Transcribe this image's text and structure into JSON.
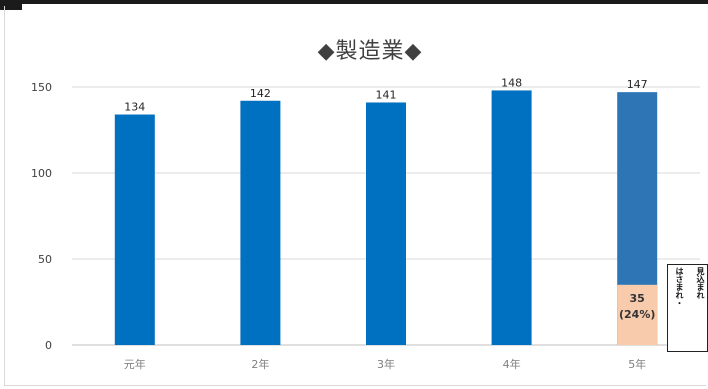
{
  "chart_data": {
    "type": "bar",
    "title": "◆製造業◆",
    "categories": [
      "元年",
      "2年",
      "3年",
      "4年",
      "5年"
    ],
    "values": [
      134,
      142,
      141,
      148,
      147
    ],
    "value_labels": [
      "134",
      "142",
      "141",
      "148",
      "147"
    ],
    "ylim": [
      0,
      150
    ],
    "yticks": [
      0,
      50,
      100,
      150
    ],
    "grid": true,
    "legend": "none",
    "last_bar_segment": {
      "value": 35,
      "label": "35",
      "percent_label": "(24%)"
    },
    "note_columns": [
      "見込まれ",
      "はさまれ・"
    ],
    "colors": {
      "bar": "#0070c0",
      "last_bar": "#2e75b6",
      "segment": "#f8cbad",
      "grid": "#d9d9d9",
      "text": "#404040"
    }
  }
}
